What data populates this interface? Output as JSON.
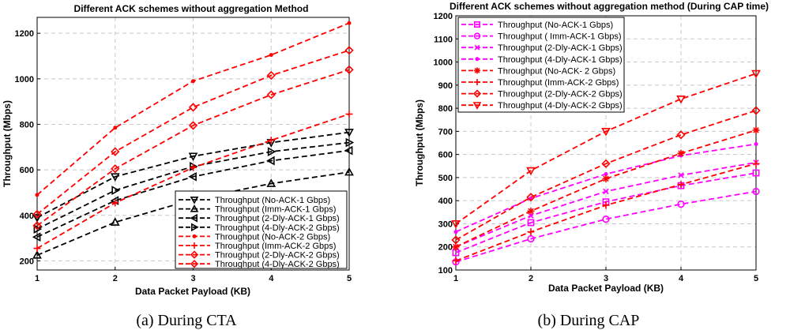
{
  "chart_data": [
    {
      "type": "line",
      "title": "Different ACK schemes without aggregation Method",
      "xlabel": "Data Packet Payload (KB)",
      "ylabel": "Throughput (Mbps)",
      "caption": "(a) During CTA",
      "x": [
        1,
        2,
        3,
        4,
        5
      ],
      "xticks": [
        "1",
        "2",
        "3",
        "4",
        "5"
      ],
      "xlim": [
        1,
        5
      ],
      "ylim": [
        160,
        1270
      ],
      "yticks": [
        200,
        400,
        600,
        800,
        1000,
        1200
      ],
      "grid": true,
      "legend_position": "bottom-right",
      "series": [
        {
          "name": "Throughput (No-ACK-1 Gbps)",
          "color": "#000000",
          "dash": "dashed",
          "marker": "triangle-down",
          "values": [
            390,
            570,
            660,
            720,
            765
          ]
        },
        {
          "name": "Throughput (Imm-ACK-1 Gbps)",
          "color": "#000000",
          "dash": "dashed",
          "marker": "triangle-up",
          "values": [
            225,
            370,
            470,
            540,
            590
          ]
        },
        {
          "name": "Throughput (2-Dly-ACK-1 Gbps)",
          "color": "#000000",
          "dash": "dashed",
          "marker": "triangle-left",
          "values": [
            305,
            465,
            570,
            640,
            685
          ]
        },
        {
          "name": "Throughput (4-Dly-ACK-2 Gbps)",
          "color": "#000000",
          "dash": "dashed",
          "marker": "triangle-right",
          "values": [
            340,
            510,
            615,
            680,
            720
          ]
        },
        {
          "name": "Throughput (No-ACK-2 Gbps)",
          "color": "#ff0000",
          "dash": "dashed",
          "marker": "point",
          "values": [
            490,
            785,
            990,
            1105,
            1245
          ]
        },
        {
          "name": "Throughput (Imm-ACK-2 Gbps)",
          "color": "#ff0000",
          "dash": "dashed",
          "marker": "plus",
          "values": [
            255,
            455,
            610,
            730,
            845
          ]
        },
        {
          "name": "Throughput (2-Dly-ACK-2 Gbps)",
          "color": "#ff0000",
          "dash": "dashed",
          "marker": "diamond",
          "values": [
            355,
            605,
            795,
            930,
            1040
          ]
        },
        {
          "name": "Throughput (4-Dly-ACK-2 Gbps)",
          "color": "#ff0000",
          "dash": "dashed",
          "marker": "diamond",
          "values": [
            405,
            680,
            875,
            1015,
            1125
          ]
        }
      ]
    },
    {
      "type": "line",
      "title": "Different ACK schemes without aggregation method (During CAP time)",
      "xlabel": "Data Packet Payload (KB)",
      "ylabel": "Throughput (Mbps)",
      "caption": "(b) During CAP",
      "x": [
        1,
        2,
        3,
        4,
        5
      ],
      "xticks": [
        "1",
        "2",
        "3",
        "4",
        "5"
      ],
      "xlim": [
        1,
        5
      ],
      "ylim": [
        100,
        1200
      ],
      "yticks": [
        100,
        200,
        300,
        400,
        500,
        600,
        700,
        800,
        900,
        1000,
        1100,
        1200
      ],
      "grid": true,
      "legend_position": "top-left",
      "series": [
        {
          "name": "Throughput (No-ACK-1 Gbps)",
          "color": "#ff00ff",
          "dash": "dashed",
          "marker": "square",
          "values": [
            175,
            305,
            395,
            465,
            520
          ]
        },
        {
          "name": "Throughput ( Imm-ACK-1 Gbps)",
          "color": "#ff00ff",
          "dash": "dashed",
          "marker": "circle",
          "values": [
            135,
            235,
            320,
            385,
            440
          ]
        },
        {
          "name": "Throughput (2-Dly-ACK-1 Gbps)",
          "color": "#ff00ff",
          "dash": "dashed",
          "marker": "x",
          "values": [
            200,
            335,
            440,
            510,
            565
          ]
        },
        {
          "name": "Throughput (4-Dly-ACK-1 Gbps)",
          "color": "#ff00ff",
          "dash": "dashed",
          "marker": "point",
          "values": [
            265,
            410,
            515,
            595,
            645
          ]
        },
        {
          "name": "Throughput (No-ACK- 2 Gbps)",
          "color": "#ff0000",
          "dash": "dashed",
          "marker": "star",
          "values": [
            200,
            355,
            495,
            605,
            705
          ]
        },
        {
          "name": "Throughput (Imm-ACK-2 Gbps)",
          "color": "#ff0000",
          "dash": "dashed",
          "marker": "plus",
          "values": [
            140,
            265,
            380,
            470,
            560
          ]
        },
        {
          "name": "Throughput (2-Dly-ACK-2 Gbps)",
          "color": "#ff0000",
          "dash": "dashed",
          "marker": "diamond",
          "values": [
            230,
            415,
            560,
            685,
            790
          ]
        },
        {
          "name": "Throughput (4-Dly-ACK-2 Gbps)",
          "color": "#ff0000",
          "dash": "dashed",
          "marker": "triangle-down",
          "values": [
            300,
            530,
            700,
            840,
            950
          ]
        }
      ]
    }
  ]
}
